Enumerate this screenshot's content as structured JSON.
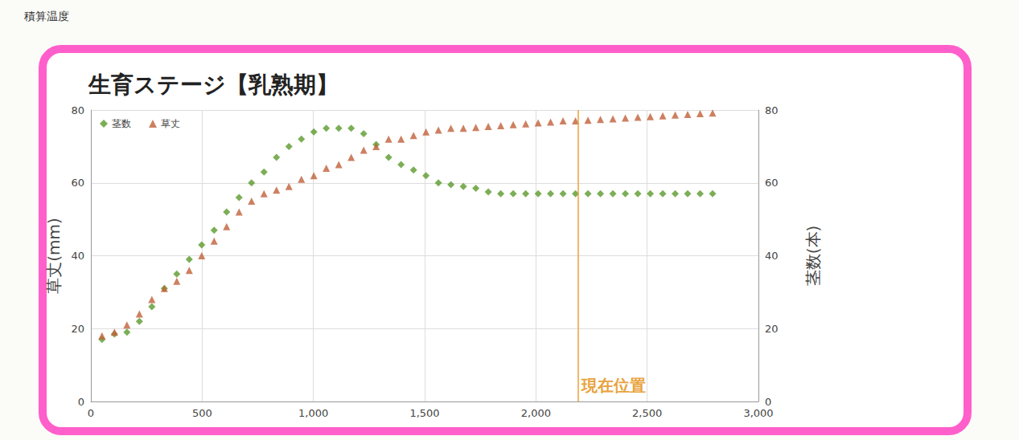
{
  "header": "積算温度",
  "chart_data": {
    "type": "scatter",
    "title": "生育ステージ【乳熟期】",
    "y_label": "草丈(mm)",
    "y2_label": "茎数(本)",
    "x": [
      50,
      106,
      162,
      218,
      274,
      330,
      386,
      442,
      498,
      554,
      610,
      666,
      722,
      778,
      834,
      890,
      946,
      1002,
      1058,
      1114,
      1170,
      1226,
      1282,
      1338,
      1394,
      1450,
      1506,
      1562,
      1618,
      1674,
      1730,
      1786,
      1842,
      1898,
      1954,
      2010,
      2066,
      2122,
      2178,
      2234,
      2290,
      2346,
      2402,
      2458,
      2514,
      2570,
      2626,
      2682,
      2738,
      2794
    ],
    "series": [
      {
        "name": "茎数",
        "color": "#5b9a2c",
        "marker": "diamond",
        "axis": "y2",
        "values": [
          17,
          18.5,
          19,
          22,
          26,
          31,
          35,
          39,
          43,
          47,
          52,
          56,
          60,
          63,
          67,
          70,
          72,
          74,
          75,
          75,
          75,
          73.5,
          70.5,
          67,
          65,
          63.5,
          62,
          60,
          59.5,
          59,
          58.5,
          57.5,
          57,
          57,
          57,
          57,
          57,
          57,
          57,
          57,
          57,
          57,
          57,
          57,
          57,
          57,
          57,
          57,
          57,
          57
        ]
      },
      {
        "name": "草丈",
        "color": "#c0603a",
        "marker": "triangle",
        "values": [
          18,
          19,
          21,
          24,
          28,
          31,
          33,
          36,
          40,
          44,
          48,
          52,
          55,
          57,
          58,
          59,
          61,
          62,
          64,
          65,
          67,
          69,
          70,
          72,
          72,
          73,
          74,
          74.5,
          75,
          75,
          75.2,
          75.5,
          75.7,
          76,
          76.2,
          76.5,
          76.7,
          77,
          77,
          77.2,
          77.4,
          77.6,
          77.8,
          78,
          78.2,
          78.4,
          78.6,
          78.8,
          79,
          79.2
        ]
      }
    ],
    "xlim": [
      0,
      3000
    ],
    "xticks": [
      0,
      500,
      {
        "value": 1000,
        "label": "1,000"
      },
      {
        "value": 1500,
        "label": "1,500"
      },
      {
        "value": 2000,
        "label": "2,000"
      },
      {
        "value": 2500,
        "label": "2,500"
      },
      {
        "value": 3000,
        "label": "3,000"
      }
    ],
    "ylim": [
      0,
      80
    ],
    "yticks": [
      0,
      20,
      40,
      60,
      80
    ],
    "y2lim": [
      0,
      80
    ],
    "y2ticks": [
      0,
      20,
      40,
      60,
      80
    ],
    "annotations": [
      {
        "x": 2190,
        "text": "現在位置",
        "color": "#e8a23c"
      }
    ],
    "grid": true,
    "legend": "top-left"
  }
}
